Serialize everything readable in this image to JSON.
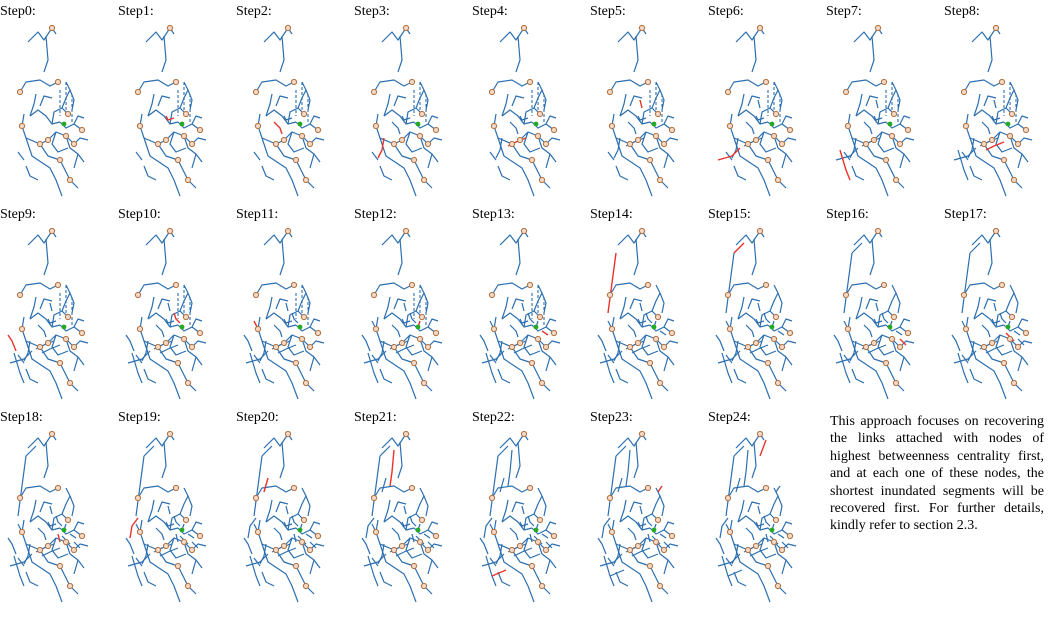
{
  "colors": {
    "road": "#2c6fb0",
    "recovered": "#e8342b",
    "node_ring": "#b07040",
    "center_node": "#22aa22"
  },
  "panels": [
    {
      "label": "Step0:"
    },
    {
      "label": "Step1:"
    },
    {
      "label": "Step2:"
    },
    {
      "label": "Step3:"
    },
    {
      "label": "Step4:"
    },
    {
      "label": "Step5:"
    },
    {
      "label": "Step6:"
    },
    {
      "label": "Step7:"
    },
    {
      "label": "Step8:"
    },
    {
      "label": "Step9:"
    },
    {
      "label": "Step10:"
    },
    {
      "label": "Step11:"
    },
    {
      "label": "Step12:"
    },
    {
      "label": "Step13:"
    },
    {
      "label": "Step14:"
    },
    {
      "label": "Step15:"
    },
    {
      "label": "Step16:"
    },
    {
      "label": "Step17:"
    },
    {
      "label": "Step18:"
    },
    {
      "label": "Step19:"
    },
    {
      "label": "Step20:"
    },
    {
      "label": "Step21:"
    },
    {
      "label": "Step22:"
    },
    {
      "label": "Step23:"
    },
    {
      "label": "Step24:"
    }
  ],
  "description": "This approach focuses on recovering the links attached with nodes of highest betweenness centrality first, and at each one of these nodes, the shortest inundated segments will be recovered first. For further details, kindly refer to section 2.3."
}
